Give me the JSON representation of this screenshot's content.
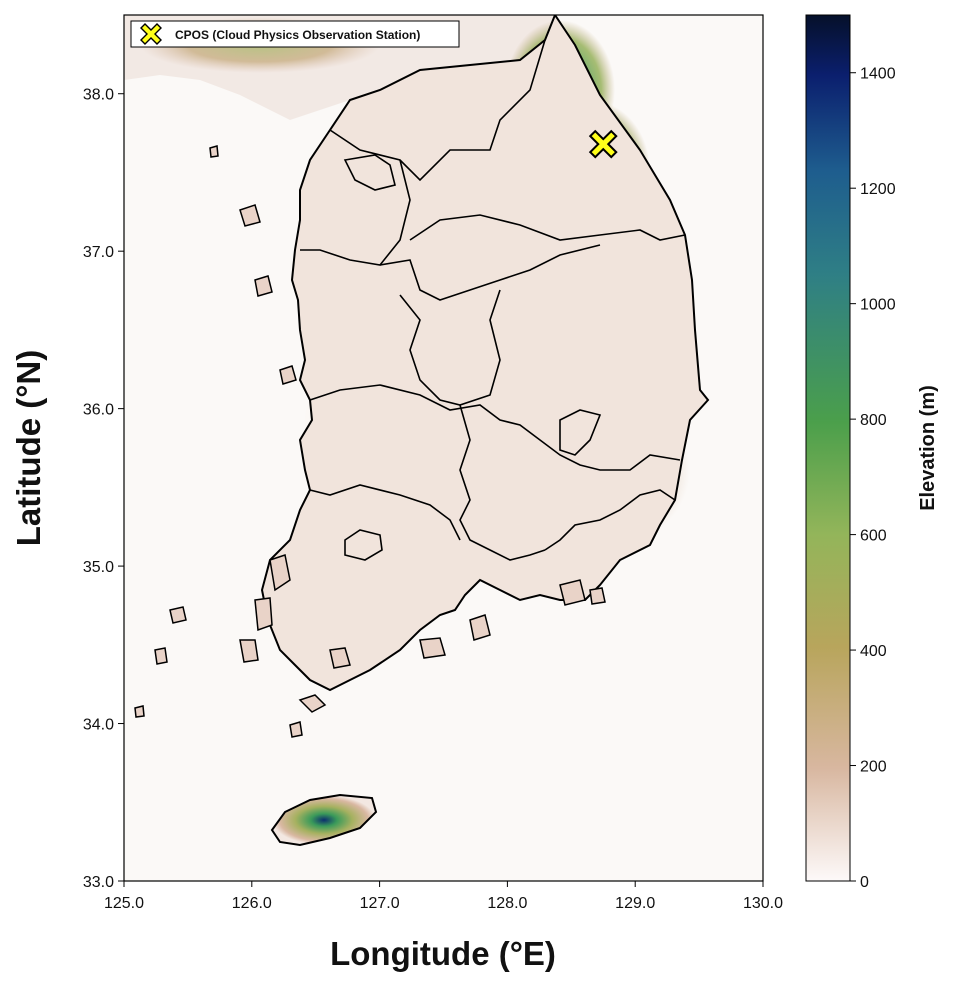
{
  "map": {
    "xlabel": "Longitude (°E)",
    "ylabel": "Latitude (°N)",
    "xlim": [
      125.0,
      130.0
    ],
    "ylim": [
      33.0,
      38.5
    ],
    "x_ticks": [
      "125.0",
      "126.0",
      "127.0",
      "128.0",
      "129.0",
      "130.0"
    ],
    "y_ticks": [
      "33.0",
      "34.0",
      "35.0",
      "36.0",
      "37.0",
      "38.0"
    ],
    "background_color": "#fbf9f7",
    "coastline_color": "#000000"
  },
  "legend": {
    "marker_icon": "x-marker-icon",
    "marker_color": "#ffff1a",
    "label": "CPOS (Cloud Physics Observation Station)"
  },
  "station": {
    "name": "CPOS (Cloud Physics Observation Station)",
    "lon": 128.75,
    "lat": 37.68
  },
  "colorbar": {
    "label": "Elevation (m)",
    "min": 0,
    "max": 1500,
    "ticks": [
      "0",
      "200",
      "400",
      "600",
      "800",
      "1000",
      "1200",
      "1400"
    ],
    "colormap": "gist_earth_r",
    "colors": [
      "#fdf9f9",
      "#d8b7a0",
      "#b8a55c",
      "#93b55a",
      "#4b9f4b",
      "#2f7f85",
      "#1e5d8e",
      "#0b1f6e",
      "#05102a"
    ]
  }
}
